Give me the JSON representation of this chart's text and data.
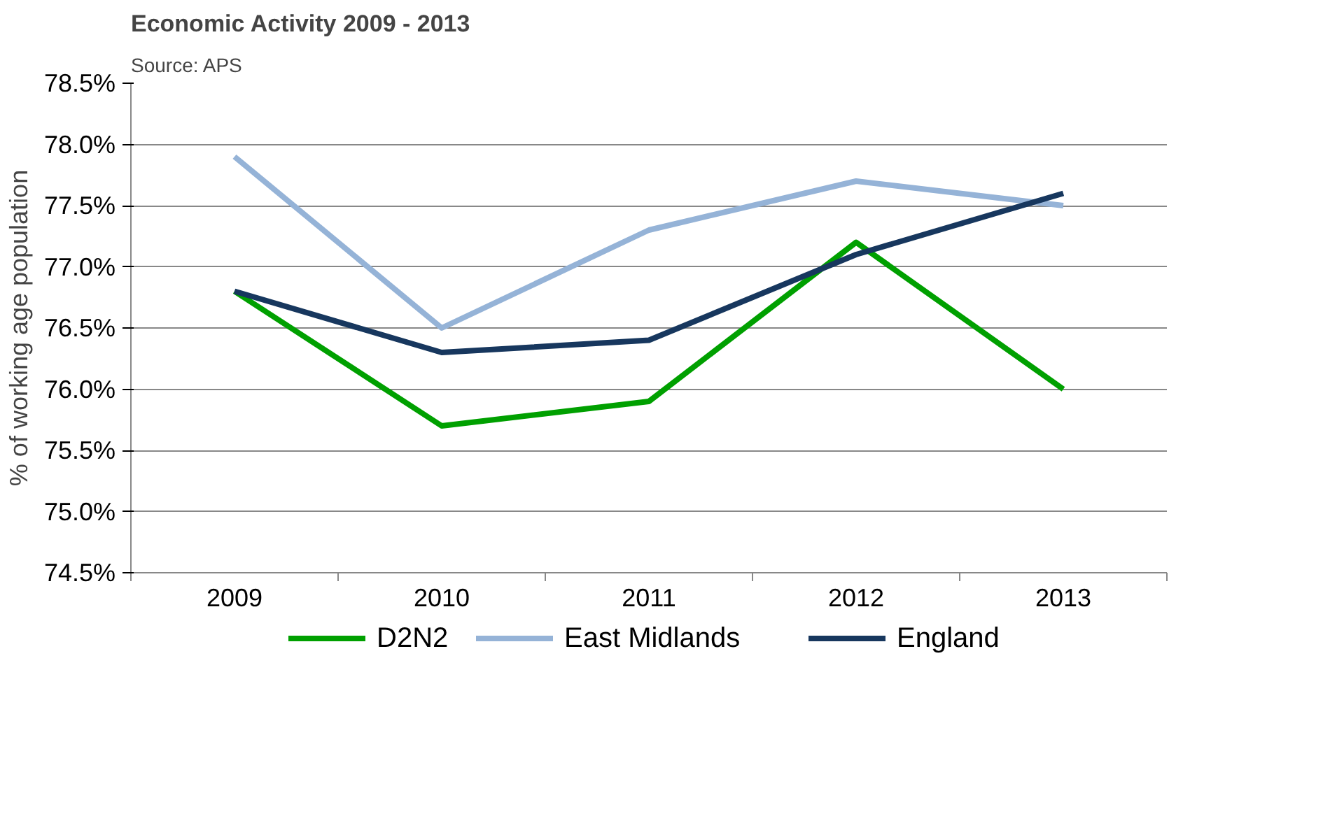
{
  "chart_data": {
    "type": "line",
    "title": "Economic Activity 2009 - 2013",
    "annotations": [
      "Source: APS"
    ],
    "ylabel": "% of working age population",
    "categories": [
      "2009",
      "2010",
      "2011",
      "2012",
      "2013"
    ],
    "series": [
      {
        "name": "D2N2",
        "color": "#00a000",
        "values": [
          76.8,
          75.7,
          75.9,
          77.2,
          76.0
        ]
      },
      {
        "name": "East Midlands",
        "color": "#95b3d7",
        "values": [
          77.9,
          76.5,
          77.3,
          77.7,
          77.5
        ]
      },
      {
        "name": "England",
        "color": "#17375e",
        "values": [
          76.8,
          76.3,
          76.4,
          77.1,
          77.6
        ]
      }
    ],
    "ylim": [
      74.5,
      78.5
    ],
    "yticks": [
      {
        "value": 74.5,
        "label": "74.5%"
      },
      {
        "value": 75.0,
        "label": "75.0%"
      },
      {
        "value": 75.5,
        "label": "75.5%"
      },
      {
        "value": 76.0,
        "label": "76.0%"
      },
      {
        "value": 76.5,
        "label": "76.5%"
      },
      {
        "value": 77.0,
        "label": "77.0%"
      },
      {
        "value": 77.5,
        "label": "77.5%"
      },
      {
        "value": 78.0,
        "label": "78.0%"
      },
      {
        "value": 78.5,
        "label": "78.5%"
      }
    ],
    "grid": "y",
    "legend": "bottom",
    "marker": "none",
    "line_style": "solid"
  }
}
